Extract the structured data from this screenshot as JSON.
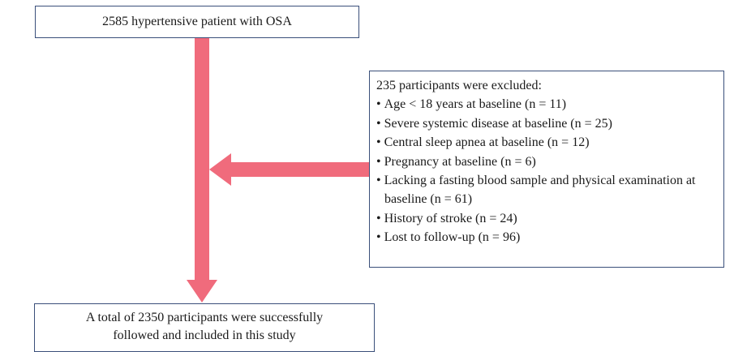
{
  "top_box": {
    "text": "2585 hypertensive patient with OSA"
  },
  "exclusion_box": {
    "title": "235 participants were excluded:",
    "items": [
      "Age < 18 years at baseline (n = 11)",
      "Severe systemic disease at baseline (n = 25)",
      "Central sleep apnea at baseline (n = 12)",
      "Pregnancy at baseline (n = 6)",
      "Lacking a fasting blood sample and physical examination at baseline (n = 61)",
      "History of stroke (n = 24)",
      "Lost to follow-up (n = 96)"
    ]
  },
  "bottom_box": {
    "lines": [
      "A total of 2350 participants were successfully",
      "followed and included in this study"
    ]
  }
}
